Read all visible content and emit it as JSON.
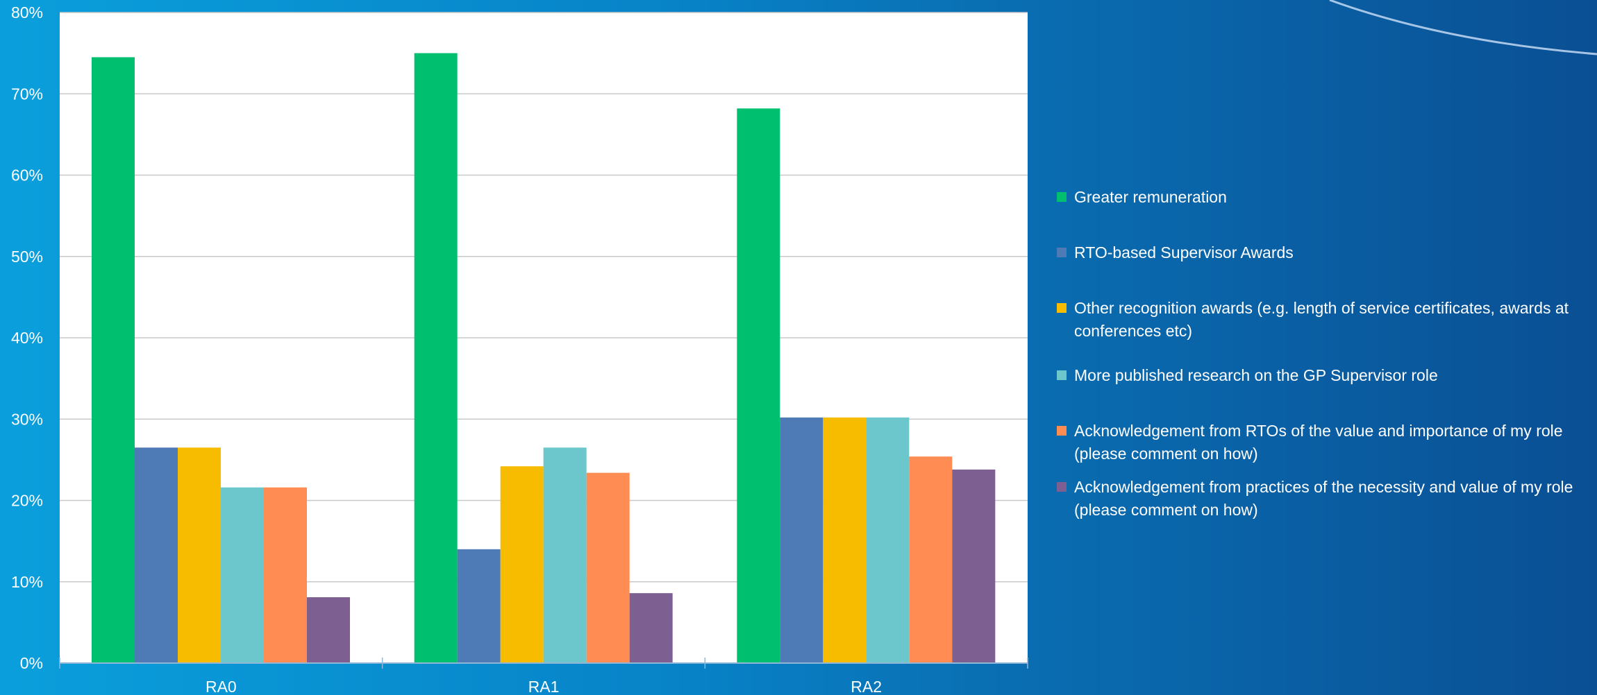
{
  "colors": {
    "background_left": "#0a9fdc",
    "background_right": "#0a4f94",
    "plot_background": "#ffffff",
    "gridline": "#c8c8c8",
    "axis_text": "#ffffff"
  },
  "chart_data": {
    "type": "bar",
    "title": "",
    "xlabel": "",
    "ylabel": "",
    "categories": [
      "RA0",
      "RA1",
      "RA2"
    ],
    "ylim": [
      0,
      80
    ],
    "y_ticks": [
      "0%",
      "10%",
      "20%",
      "30%",
      "40%",
      "50%",
      "60%",
      "70%",
      "80%"
    ],
    "y_unit": "%",
    "grid": true,
    "legend_position": "right",
    "series": [
      {
        "name": "Greater remuneration",
        "color": "#00bf6f",
        "values": [
          74.5,
          75.0,
          68.2
        ]
      },
      {
        "name": "RTO-based Supervisor Awards",
        "color": "#4e7ab5",
        "values": [
          26.5,
          14.0,
          30.2
        ]
      },
      {
        "name": "Other recognition awards (e.g. length of service certificates, awards at conferences etc)",
        "color": "#f7bc00",
        "values": [
          26.5,
          24.2,
          30.2
        ]
      },
      {
        "name": "More published research on the GP Supervisor role",
        "color": "#6cc7cc",
        "values": [
          21.6,
          26.5,
          30.2
        ]
      },
      {
        "name": "Acknowledgement from RTOs of the value and importance of my role (please comment on how)",
        "color": "#ff8c52",
        "values": [
          21.6,
          23.4,
          25.4
        ]
      },
      {
        "name": "Acknowledgement from practices of the necessity and value of my role (please comment on how)",
        "color": "#7d5f92",
        "values": [
          8.1,
          8.6,
          23.8
        ]
      }
    ]
  }
}
